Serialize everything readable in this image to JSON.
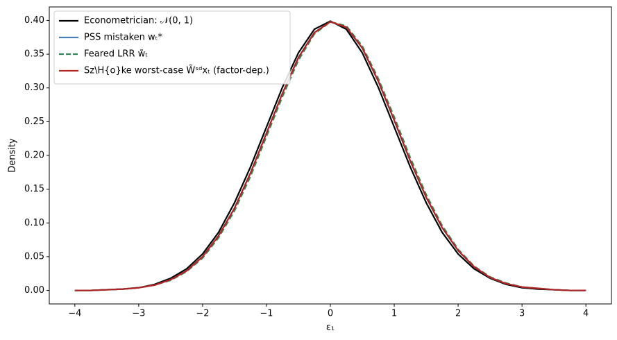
{
  "chart_data": {
    "type": "line",
    "xlabel": "ε₁",
    "ylabel": "Density",
    "x": [
      -4,
      -3.75,
      -3.5,
      -3.25,
      -3,
      -2.75,
      -2.5,
      -2.25,
      -2,
      -1.75,
      -1.5,
      -1.25,
      -1,
      -0.75,
      -0.5,
      -0.25,
      0,
      0.25,
      0.5,
      0.75,
      1,
      1.25,
      1.5,
      1.75,
      2,
      2.25,
      2.5,
      2.75,
      3,
      3.25,
      3.5,
      3.75,
      4
    ],
    "series": [
      {
        "name": "Econometrician: 𝒩(0, 1)",
        "color": "#000000",
        "dashed": false,
        "values": [
          0.0,
          0.0,
          0.001,
          0.002,
          0.004,
          0.009,
          0.018,
          0.032,
          0.054,
          0.086,
          0.13,
          0.183,
          0.242,
          0.301,
          0.352,
          0.387,
          0.399,
          0.387,
          0.352,
          0.301,
          0.242,
          0.183,
          0.13,
          0.086,
          0.054,
          0.032,
          0.018,
          0.009,
          0.004,
          0.002,
          0.001,
          0.0,
          0.0
        ]
      },
      {
        "name": "PSS mistaken wₜ*",
        "color": "#4682b4",
        "dashed": false,
        "values": [
          0.0,
          0.0,
          0.001,
          0.002,
          0.004,
          0.008,
          0.016,
          0.029,
          0.05,
          0.081,
          0.122,
          0.174,
          0.233,
          0.292,
          0.345,
          0.382,
          0.398,
          0.39,
          0.359,
          0.31,
          0.252,
          0.192,
          0.138,
          0.093,
          0.059,
          0.035,
          0.019,
          0.01,
          0.005,
          0.003,
          0.001,
          0.0,
          0.0
        ]
      },
      {
        "name": "Feared LRR w̃ₜ",
        "color": "#2e8b57",
        "dashed": true,
        "values": [
          0.0,
          0.0,
          0.001,
          0.002,
          0.004,
          0.008,
          0.015,
          0.028,
          0.048,
          0.078,
          0.118,
          0.169,
          0.228,
          0.287,
          0.341,
          0.38,
          0.398,
          0.392,
          0.362,
          0.314,
          0.257,
          0.197,
          0.142,
          0.096,
          0.061,
          0.036,
          0.02,
          0.011,
          0.005,
          0.003,
          0.001,
          0.0,
          0.0
        ]
      },
      {
        "name": "Sz\\H{o}ke worst-case W̃ˢᵈxₜ (factor-dep.)",
        "color": "#b22222",
        "dashed": false,
        "values": [
          0.0,
          0.0,
          0.001,
          0.002,
          0.004,
          0.008,
          0.016,
          0.029,
          0.05,
          0.081,
          0.122,
          0.174,
          0.233,
          0.292,
          0.345,
          0.382,
          0.398,
          0.39,
          0.359,
          0.31,
          0.252,
          0.192,
          0.138,
          0.093,
          0.059,
          0.035,
          0.019,
          0.01,
          0.005,
          0.003,
          0.001,
          0.0,
          0.0
        ]
      }
    ],
    "xlim": [
      -4.4,
      4.4
    ],
    "xticks": [
      {
        "value": -4,
        "label": "−4"
      },
      {
        "value": -3,
        "label": "−3"
      },
      {
        "value": -2,
        "label": "−2"
      },
      {
        "value": -1,
        "label": "−1"
      },
      0,
      1,
      2,
      3,
      4
    ],
    "ylim": [
      -0.02,
      0.42
    ],
    "yticks": [
      {
        "value": 0,
        "label": "0.00"
      },
      {
        "value": 0.05,
        "label": "0.05"
      },
      {
        "value": 0.1,
        "label": "0.10"
      },
      {
        "value": 0.15,
        "label": "0.15"
      },
      {
        "value": 0.2,
        "label": "0.20"
      },
      {
        "value": 0.25,
        "label": "0.25"
      },
      {
        "value": 0.3,
        "label": "0.30"
      },
      {
        "value": 0.35,
        "label": "0.35"
      },
      {
        "value": 0.4,
        "label": "0.40"
      }
    ],
    "legend": "upper-left",
    "grid": false
  }
}
